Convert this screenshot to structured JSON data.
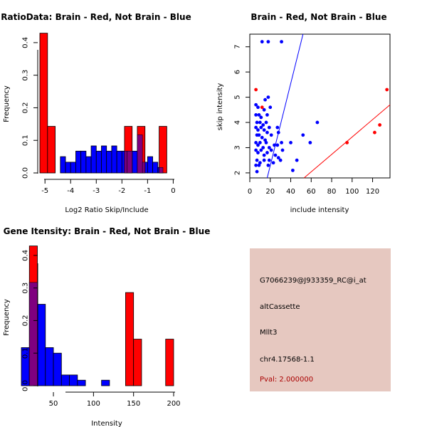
{
  "colors": {
    "red": "#ff0000",
    "blue": "#0000ff",
    "overlap": "#7f007f",
    "panel": "#e6c8c0",
    "pval": "#aa0000"
  },
  "chart_data": [
    {
      "type": "bar",
      "title": "RatioData: Brain - Red, Not Brain - Blue",
      "xlabel": "Log2 Ratio Skip/Include",
      "ylabel": "Frequency",
      "xlim": [
        -5.2,
        0.1
      ],
      "ylim": [
        0,
        0.45
      ],
      "xticks": [
        "-5",
        "-4",
        "-3",
        "-2",
        "-1",
        "0"
      ],
      "yticks": [
        "0.0",
        "0.1",
        "0.2",
        "0.3",
        "0.4"
      ],
      "series": [
        {
          "name": "Not Brain",
          "color": "blue",
          "bins": [
            [
              -4.4,
              -4.2,
              0.05
            ],
            [
              -4.2,
              -4.0,
              0.033
            ],
            [
              -4.0,
              -3.8,
              0.033
            ],
            [
              -3.8,
              -3.6,
              0.067
            ],
            [
              -3.6,
              -3.4,
              0.067
            ],
            [
              -3.4,
              -3.2,
              0.05
            ],
            [
              -3.2,
              -3.0,
              0.083
            ],
            [
              -3.0,
              -2.8,
              0.067
            ],
            [
              -2.8,
              -2.6,
              0.083
            ],
            [
              -2.6,
              -2.4,
              0.067
            ],
            [
              -2.4,
              -2.2,
              0.083
            ],
            [
              -2.2,
              -2.0,
              0.067
            ],
            [
              -2.0,
              -1.8,
              0.067
            ],
            [
              -1.8,
              -1.6,
              0.067
            ],
            [
              -1.6,
              -1.4,
              0.067
            ],
            [
              -1.4,
              -1.2,
              0.117
            ],
            [
              -1.2,
              -1.0,
              0.033
            ],
            [
              -1.0,
              -0.8,
              0.05
            ],
            [
              -0.8,
              -0.6,
              0.033
            ],
            [
              -0.6,
              -0.4,
              0.017
            ]
          ]
        },
        {
          "name": "Brain",
          "color": "red",
          "bins": [
            [
              -5.2,
              -4.9,
              0.429
            ],
            [
              -4.9,
              -4.6,
              0.143
            ],
            [
              -1.9,
              -1.6,
              0.143
            ],
            [
              -1.4,
              -1.1,
              0.143
            ],
            [
              -0.55,
              -0.25,
              0.143
            ]
          ]
        }
      ]
    },
    {
      "type": "scatter",
      "title": "Brain - Red, Not Brain - Blue",
      "xlabel": "include intensity",
      "ylabel": "skip intensity",
      "xlim": [
        0,
        137
      ],
      "ylim": [
        1.8,
        7.5
      ],
      "xticks": [
        "0",
        "20",
        "40",
        "60",
        "80",
        "100",
        "120"
      ],
      "yticks": [
        "2",
        "3",
        "4",
        "5",
        "6",
        "7"
      ],
      "series": [
        {
          "name": "Not Brain",
          "color": "blue",
          "points": [
            [
              12,
              7.2
            ],
            [
              18,
              7.2
            ],
            [
              31,
              7.2
            ],
            [
              18,
              5.0
            ],
            [
              15,
              4.9
            ],
            [
              6,
              4.7
            ],
            [
              8,
              4.6
            ],
            [
              14,
              4.5
            ],
            [
              20,
              4.6
            ],
            [
              6,
              4.3
            ],
            [
              9,
              4.3
            ],
            [
              11,
              4.2
            ],
            [
              17,
              4.3
            ],
            [
              7,
              4.0
            ],
            [
              10,
              4.0
            ],
            [
              13,
              3.9
            ],
            [
              16,
              4.0
            ],
            [
              6,
              3.8
            ],
            [
              8,
              3.7
            ],
            [
              11,
              3.8
            ],
            [
              14,
              3.7
            ],
            [
              19,
              3.8
            ],
            [
              66,
              4.0
            ],
            [
              27,
              3.8
            ],
            [
              7,
              3.5
            ],
            [
              9,
              3.5
            ],
            [
              12,
              3.4
            ],
            [
              15,
              3.3
            ],
            [
              17,
              3.6
            ],
            [
              21,
              3.5
            ],
            [
              28,
              3.6
            ],
            [
              52,
              3.5
            ],
            [
              6,
              3.2
            ],
            [
              8,
              3.1
            ],
            [
              10,
              3.2
            ],
            [
              13,
              3.0
            ],
            [
              16,
              3.2
            ],
            [
              19,
              3.0
            ],
            [
              24,
              3.1
            ],
            [
              27,
              3.1
            ],
            [
              31,
              3.2
            ],
            [
              40,
              3.2
            ],
            [
              59,
              3.2
            ],
            [
              6,
              2.9
            ],
            [
              8,
              2.8
            ],
            [
              11,
              2.9
            ],
            [
              14,
              2.7
            ],
            [
              17,
              2.8
            ],
            [
              21,
              2.9
            ],
            [
              25,
              2.7
            ],
            [
              28,
              2.6
            ],
            [
              32,
              2.9
            ],
            [
              7,
              2.5
            ],
            [
              10,
              2.4
            ],
            [
              14,
              2.5
            ],
            [
              18,
              2.3
            ],
            [
              23,
              2.4
            ],
            [
              30,
              2.5
            ],
            [
              46,
              2.5
            ],
            [
              6,
              2.3
            ],
            [
              9,
              2.3
            ],
            [
              19,
              2.5
            ],
            [
              42,
              2.1
            ],
            [
              7,
              2.05
            ]
          ]
        },
        {
          "name": "Brain",
          "color": "red",
          "points": [
            [
              6,
              5.3
            ],
            [
              12,
              4.6
            ],
            [
              95,
              3.2
            ],
            [
              122,
              3.6
            ],
            [
              127,
              3.9
            ],
            [
              134,
              5.3
            ]
          ]
        }
      ],
      "lines": [
        {
          "color": "blue",
          "from": [
            17,
            1.8
          ],
          "to": [
            52,
            7.5
          ]
        },
        {
          "color": "red",
          "from": [
            53,
            1.8
          ],
          "to": [
            137,
            4.7
          ]
        }
      ]
    },
    {
      "type": "bar",
      "title": "Gene Itensity: Brain - Red, Not Brain - Blue",
      "xlabel": "Intensity",
      "ylabel": "Frequency",
      "xlim": [
        10,
        200
      ],
      "ylim": [
        0,
        0.45
      ],
      "xticks": [
        "50",
        "100",
        "150",
        "200"
      ],
      "yticks": [
        "0.0",
        "0.1",
        "0.2",
        "0.3",
        "0.4"
      ],
      "series": [
        {
          "name": "Not Brain",
          "color": "blue",
          "bins": [
            [
              10,
              20,
              0.117
            ],
            [
              20,
              30,
              0.317
            ],
            [
              30,
              40,
              0.25
            ],
            [
              40,
              50,
              0.117
            ],
            [
              50,
              60,
              0.1
            ],
            [
              60,
              70,
              0.033
            ],
            [
              70,
              80,
              0.033
            ],
            [
              80,
              90,
              0.017
            ],
            [
              100,
              110,
              0.0
            ],
            [
              110,
              120,
              0.017
            ]
          ]
        },
        {
          "name": "Brain",
          "color": "red",
          "bins": [
            [
              20,
              30,
              0.429
            ],
            [
              140,
              150,
              0.286
            ],
            [
              150,
              160,
              0.143
            ],
            [
              190,
              200,
              0.143
            ]
          ]
        }
      ]
    }
  ],
  "info": {
    "probe": "G7066239@J933359_RC@i_at",
    "event_type": "altCassette",
    "gene": "Mllt3",
    "location": "chr4.17568-1.1",
    "pval": "Pval: 2.000000"
  }
}
